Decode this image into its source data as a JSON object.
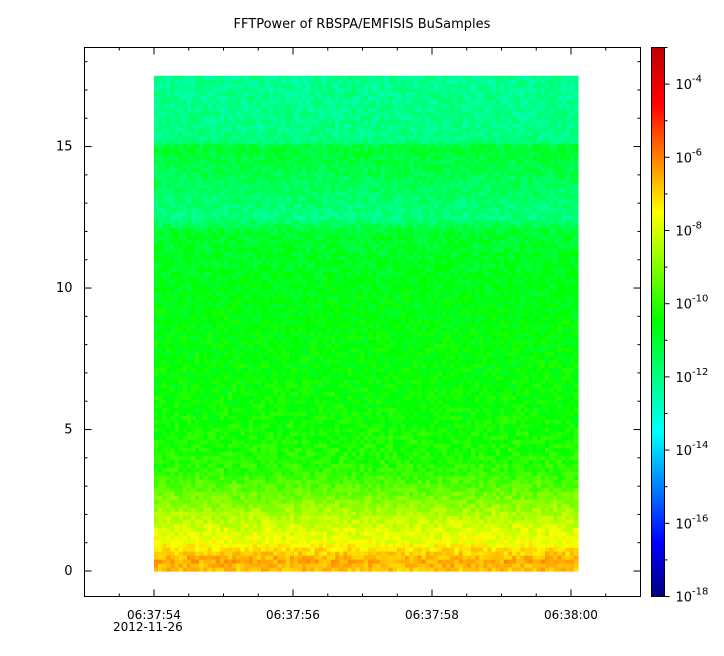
{
  "chart_data": {
    "type": "heatmap",
    "title": "FFTPower of RBSPA/EMFISIS  BuSamples",
    "xlabel": "",
    "ylabel": "",
    "x_ticks": [
      "06:37:54",
      "06:37:56",
      "06:37:58",
      "06:38:00"
    ],
    "x_start_date": "2012-11-26",
    "x_range": [
      "06:37:53.0",
      "06:38:01.0"
    ],
    "data_x_range": [
      "06:37:54.0",
      "06:38:00.1"
    ],
    "y_ticks": [
      0,
      5,
      10,
      15
    ],
    "ylim": [
      -0.9,
      18.5
    ],
    "data_y_range": [
      0,
      17.5
    ],
    "colorbar": {
      "scale": "log",
      "range": [
        1e-18,
        0.001
      ],
      "tick_exponents": [
        -18,
        -16,
        -14,
        -12,
        -10,
        -8,
        -6,
        -4
      ],
      "tick_base": "10",
      "colors": [
        "#00007f",
        "#0000ff",
        "#0080ff",
        "#00ffff",
        "#00ff80",
        "#00ff00",
        "#80ff00",
        "#ffff00",
        "#ff8000",
        "#ff0000",
        "#c00000"
      ]
    },
    "power_profile": [
      {
        "y": 0.05,
        "log_power": -6.8
      },
      {
        "y": 0.4,
        "log_power": -6.5
      },
      {
        "y": 1.0,
        "log_power": -7.6
      },
      {
        "y": 1.8,
        "log_power": -8.2
      },
      {
        "y": 2.5,
        "log_power": -9.0
      },
      {
        "y": 3.5,
        "log_power": -10.0
      },
      {
        "y": 5.0,
        "log_power": -10.3
      },
      {
        "y": 7.0,
        "log_power": -10.5
      },
      {
        "y": 9.0,
        "log_power": -10.6
      },
      {
        "y": 12.0,
        "log_power": -11.0
      },
      {
        "y": 12.5,
        "log_power": -12.0
      },
      {
        "y": 15.0,
        "log_power": -11.0
      },
      {
        "y": 15.2,
        "log_power": -12.0
      },
      {
        "y": 17.5,
        "log_power": -12.2
      }
    ]
  }
}
